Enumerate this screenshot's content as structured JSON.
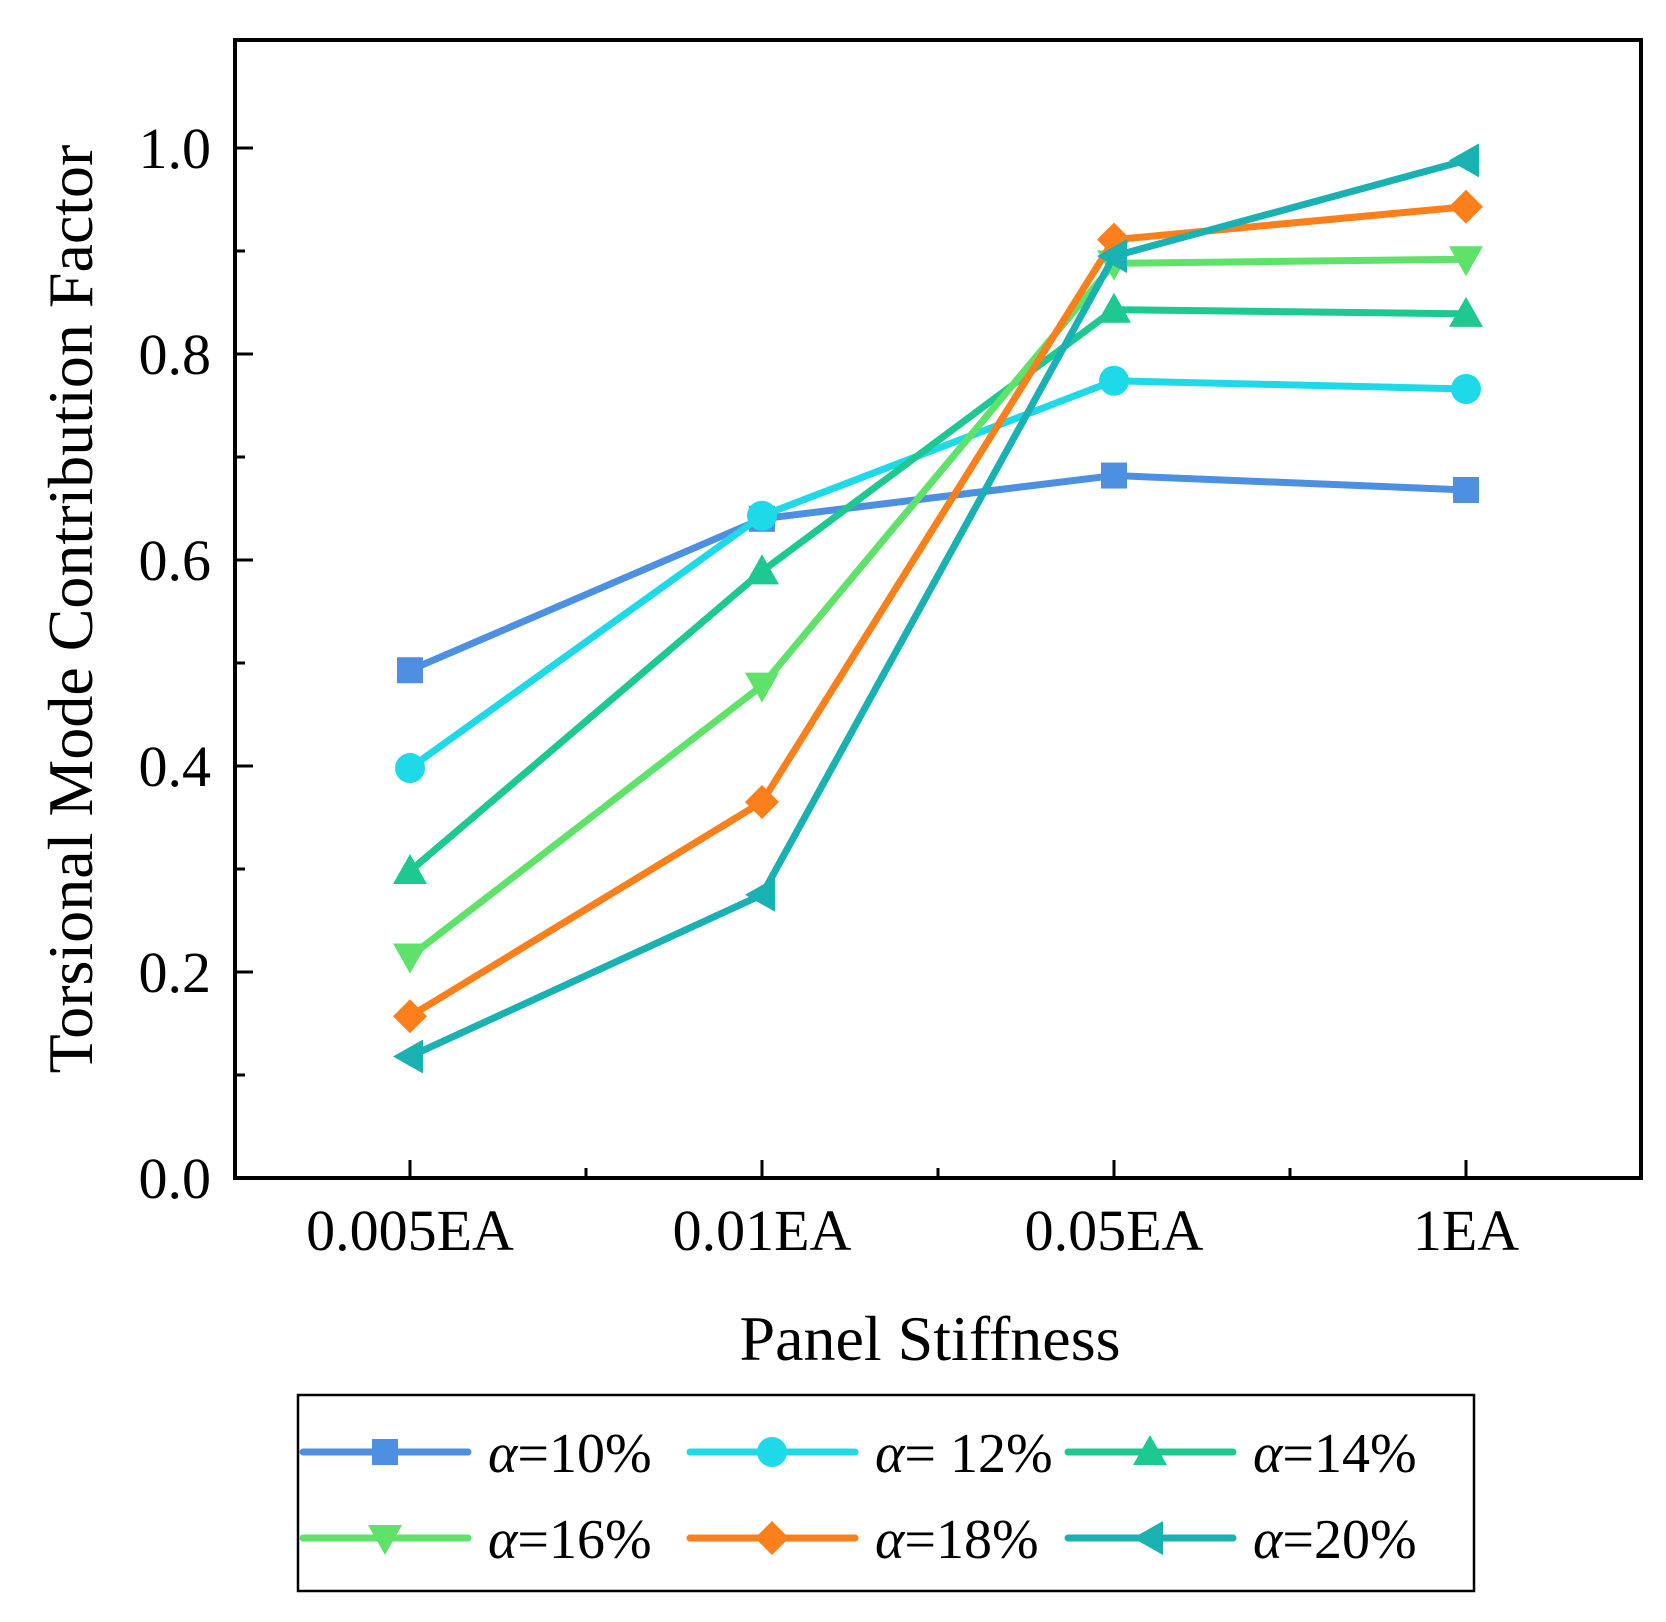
{
  "chart_data": {
    "type": "line",
    "xlabel": "Panel Stiffness",
    "ylabel": "Torsional Mode Contribution Factor",
    "categories": [
      "0.005EA",
      "0.01EA",
      "0.05EA",
      "1EA"
    ],
    "ylim": [
      0,
      1.1
    ],
    "yticks": [
      "0.0",
      "0.2",
      "0.4",
      "0.6",
      "0.8",
      "1.0"
    ],
    "grid": false,
    "legend_position": "bottom",
    "series": [
      {
        "name_symbol": "α",
        "name_value": "=10%",
        "marker": "square",
        "color": "#4d8fe0",
        "values": [
          0.493,
          0.64,
          0.682,
          0.668
        ]
      },
      {
        "name_symbol": "α",
        "name_value": "= 12%",
        "marker": "circle",
        "color": "#1ed9e8",
        "values": [
          0.398,
          0.643,
          0.774,
          0.766
        ]
      },
      {
        "name_symbol": "α",
        "name_value": "=14%",
        "marker": "triangle-up",
        "color": "#1dc891",
        "values": [
          0.298,
          0.589,
          0.843,
          0.839
        ]
      },
      {
        "name_symbol": "α",
        "name_value": "=16%",
        "marker": "triangle-down",
        "color": "#5ee26a",
        "values": [
          0.215,
          0.478,
          0.888,
          0.892
        ]
      },
      {
        "name_symbol": "α",
        "name_value": "=18%",
        "marker": "diamond",
        "color": "#fb7f1b",
        "values": [
          0.157,
          0.365,
          0.911,
          0.943
        ]
      },
      {
        "name_symbol": "α",
        "name_value": "=20%",
        "marker": "triangle-left",
        "color": "#19b1b2",
        "values": [
          0.118,
          0.275,
          0.895,
          0.988
        ]
      }
    ]
  }
}
